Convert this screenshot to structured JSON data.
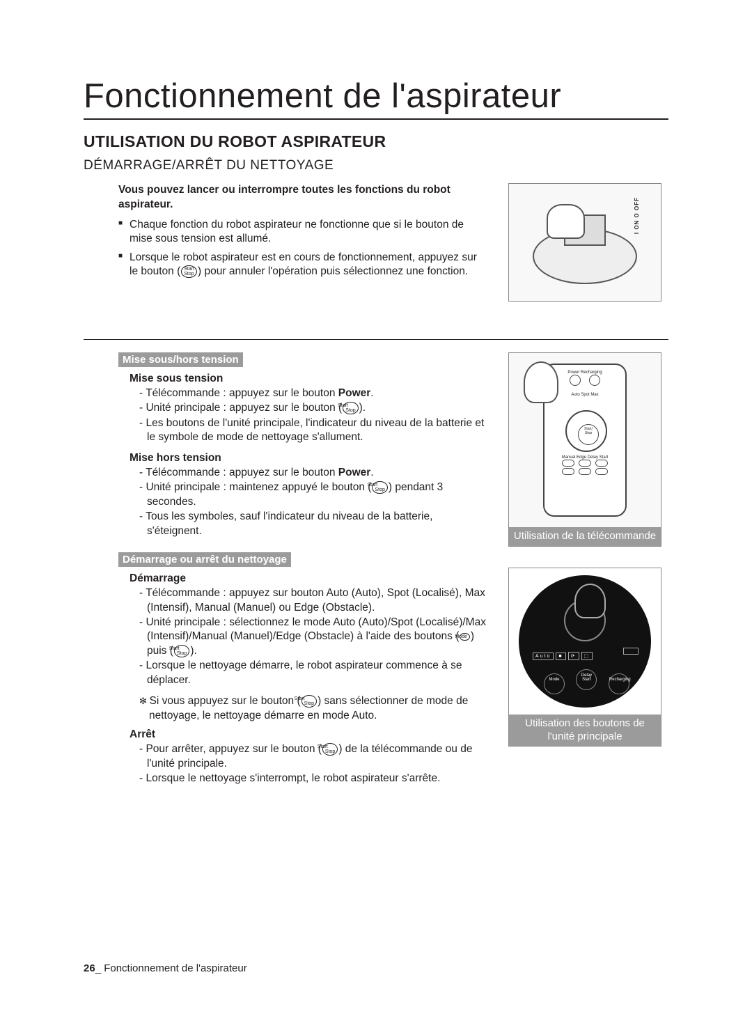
{
  "title": "Fonctionnement de l'aspirateur",
  "h2": "UTILISATION DU ROBOT ASPIRATEUR",
  "h3": "DÉMARRAGE/ARRÊT DU NETTOYAGE",
  "intro_bold": "Vous pouvez lancer ou interrompre toutes les fonctions du robot aspirateur.",
  "intro_items": [
    "Chaque fonction du robot aspirateur ne fonctionne que si le bouton de mise sous tension est allumé.",
    "Lorsque le robot aspirateur est en cours de fonctionnement, appuyez sur le bouton (Start/Stop) pour annuler l'opération puis sélectionnez une fonction."
  ],
  "section1": {
    "tag": "Mise sous/hors tension",
    "on": {
      "heading": "Mise sous tension",
      "items": [
        "Télécommande : appuyez sur le bouton <b>Power</b>.",
        "Unité principale : appuyez sur le bouton (Start/Stop).",
        "Les boutons de l'unité principale, l'indicateur du niveau de la batterie et le symbole de mode de nettoyage s'allument."
      ]
    },
    "off": {
      "heading": "Mise hors tension",
      "items": [
        "Télécommande : appuyez sur le bouton <b>Power</b>.",
        "Unité principale : maintenez appuyé le bouton (Start/Stop) pendant 3 secondes.",
        "Tous les symboles, sauf l'indicateur du niveau de la batterie, s'éteignent."
      ]
    }
  },
  "section2": {
    "tag": "Démarrage ou arrêt du nettoyage",
    "start": {
      "heading": "Démarrage",
      "items": [
        "Télécommande : appuyez sur bouton Auto (Auto), Spot (Localisé), Max (Intensif), Manual (Manuel) ou Edge (Obstacle).",
        "Unité principale : sélectionnez le mode Auto (Auto)/Spot (Localisé)/Max (Intensif)/Manual (Manuel)/Edge (Obstacle) à l'aide des boutons (Mode) puis (Start/Stop).",
        "Lorsque le nettoyage démarre, le robot aspirateur commence à se déplacer."
      ],
      "note": "Si vous appuyez sur le bouton (Start/Stop) sans sélectionner de mode de nettoyage, le nettoyage démarre en mode Auto."
    },
    "stop": {
      "heading": "Arrêt",
      "items": [
        "Pour arrêter, appuyez sur le bouton (Start/Stop) de la télécommande ou de l'unité principale.",
        "Lorsque le nettoyage s'interrompt, le robot aspirateur s'arrête."
      ]
    }
  },
  "figures": {
    "switch_labels": "I ON   O OFF",
    "remote_caption": "Utilisation de la télécommande",
    "remote_labels": {
      "top": "Power   Recharging",
      "mid": "Auto  Spot  Max",
      "bottom": "Manual Edge Delay Start"
    },
    "panel_caption": "Utilisation des boutons de l'unité principale",
    "panel_labels": {
      "big": "Start/\nStop",
      "icons": "Auto ■ ⟳ ⬚",
      "btns": [
        "Mode",
        "Delay Start",
        "Recharging"
      ]
    }
  },
  "footer": {
    "page": "26",
    "sep": "_ ",
    "text": "Fonctionnement de l'aspirateur"
  },
  "colors": {
    "tag_bg": "#9b9b9b",
    "tag_fg": "#ffffff",
    "text": "#231f20"
  }
}
